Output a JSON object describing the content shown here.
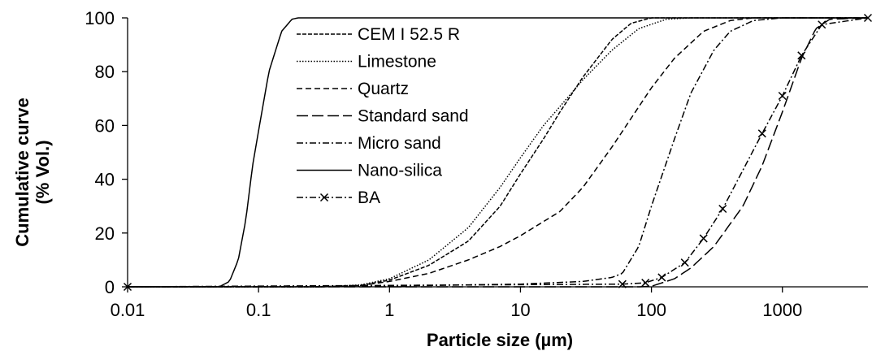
{
  "chart_data": {
    "type": "line",
    "title": "",
    "xlabel": "Particle size (µm)",
    "ylabel_line1": "Cumulative curve",
    "ylabel_line2": "(% Vol.)",
    "x_scale": "log",
    "xlim": [
      0.01,
      4500
    ],
    "ylim": [
      0,
      100
    ],
    "x_ticks": [
      {
        "value": 0.01,
        "label": "0.01"
      },
      {
        "value": 0.1,
        "label": "0.1"
      },
      {
        "value": 1,
        "label": "1"
      },
      {
        "value": 10,
        "label": "10"
      },
      {
        "value": 100,
        "label": "100"
      },
      {
        "value": 1000,
        "label": "1000"
      }
    ],
    "y_ticks": [
      {
        "value": 0,
        "label": "0"
      },
      {
        "value": 20,
        "label": "20"
      },
      {
        "value": 40,
        "label": "40"
      },
      {
        "value": 60,
        "label": "60"
      },
      {
        "value": 80,
        "label": "80"
      },
      {
        "value": 100,
        "label": "100"
      }
    ],
    "grid": false,
    "legend_position": "top-center",
    "series": [
      {
        "name": "CEM I 52.5 R",
        "dash": "5,2",
        "marker": "none",
        "points": [
          [
            0.01,
            0
          ],
          [
            0.3,
            0
          ],
          [
            0.6,
            0.5
          ],
          [
            1,
            2.5
          ],
          [
            2,
            8
          ],
          [
            4,
            17
          ],
          [
            7,
            30
          ],
          [
            10,
            42
          ],
          [
            15,
            55
          ],
          [
            20,
            65
          ],
          [
            30,
            78
          ],
          [
            50,
            92
          ],
          [
            70,
            98
          ],
          [
            100,
            100
          ],
          [
            4500,
            100
          ]
        ]
      },
      {
        "name": "Limestone",
        "dash": "1.5,2",
        "marker": "none",
        "points": [
          [
            0.01,
            0
          ],
          [
            0.3,
            0
          ],
          [
            0.6,
            0.7
          ],
          [
            1,
            3
          ],
          [
            2,
            10
          ],
          [
            4,
            22
          ],
          [
            7,
            37
          ],
          [
            10,
            48
          ],
          [
            15,
            60
          ],
          [
            20,
            67
          ],
          [
            30,
            77
          ],
          [
            50,
            88
          ],
          [
            80,
            96
          ],
          [
            130,
            99.5
          ],
          [
            200,
            100
          ],
          [
            4500,
            100
          ]
        ]
      },
      {
        "name": "Quartz",
        "dash": "7,4",
        "marker": "none",
        "points": [
          [
            0.01,
            0
          ],
          [
            0.3,
            0
          ],
          [
            0.6,
            0.5
          ],
          [
            1,
            2
          ],
          [
            2,
            5
          ],
          [
            4,
            10
          ],
          [
            7,
            15
          ],
          [
            10,
            19
          ],
          [
            20,
            28
          ],
          [
            30,
            37
          ],
          [
            50,
            52
          ],
          [
            100,
            74
          ],
          [
            150,
            85
          ],
          [
            250,
            95
          ],
          [
            400,
            99
          ],
          [
            600,
            100
          ],
          [
            4500,
            100
          ]
        ]
      },
      {
        "name": "Standard sand",
        "dash": "14,5",
        "marker": "none",
        "points": [
          [
            0.01,
            0
          ],
          [
            80,
            0
          ],
          [
            100,
            0.2
          ],
          [
            150,
            3
          ],
          [
            200,
            7
          ],
          [
            300,
            15
          ],
          [
            500,
            30
          ],
          [
            700,
            45
          ],
          [
            1000,
            65
          ],
          [
            1400,
            85
          ],
          [
            1800,
            96
          ],
          [
            2300,
            99.5
          ],
          [
            4500,
            100
          ]
        ]
      },
      {
        "name": "Micro sand",
        "dash": "8,3,2,3",
        "marker": "none",
        "points": [
          [
            0.01,
            0
          ],
          [
            1,
            0.3
          ],
          [
            10,
            1
          ],
          [
            30,
            2
          ],
          [
            50,
            3.5
          ],
          [
            60,
            5
          ],
          [
            80,
            15
          ],
          [
            100,
            30
          ],
          [
            150,
            55
          ],
          [
            200,
            72
          ],
          [
            300,
            88
          ],
          [
            400,
            95
          ],
          [
            600,
            99
          ],
          [
            1000,
            100
          ],
          [
            4500,
            100
          ]
        ]
      },
      {
        "name": "Nano-silica",
        "dash": "",
        "marker": "none",
        "points": [
          [
            0.01,
            0
          ],
          [
            0.05,
            0
          ],
          [
            0.06,
            2
          ],
          [
            0.07,
            10
          ],
          [
            0.08,
            25
          ],
          [
            0.09,
            45
          ],
          [
            0.1,
            58
          ],
          [
            0.12,
            80
          ],
          [
            0.15,
            95
          ],
          [
            0.18,
            99.5
          ],
          [
            0.2,
            100
          ],
          [
            4500,
            100
          ]
        ]
      },
      {
        "name": "BA",
        "dash": "8,3,2,3",
        "marker": "x",
        "points": [
          [
            0.01,
            0
          ],
          [
            60,
            1
          ],
          [
            90,
            1.5
          ],
          [
            120,
            3.5
          ],
          [
            180,
            9
          ],
          [
            250,
            18
          ],
          [
            350,
            29
          ],
          [
            700,
            57
          ],
          [
            1000,
            71
          ],
          [
            1400,
            86
          ],
          [
            2000,
            97.5
          ],
          [
            4500,
            100
          ]
        ]
      }
    ]
  }
}
